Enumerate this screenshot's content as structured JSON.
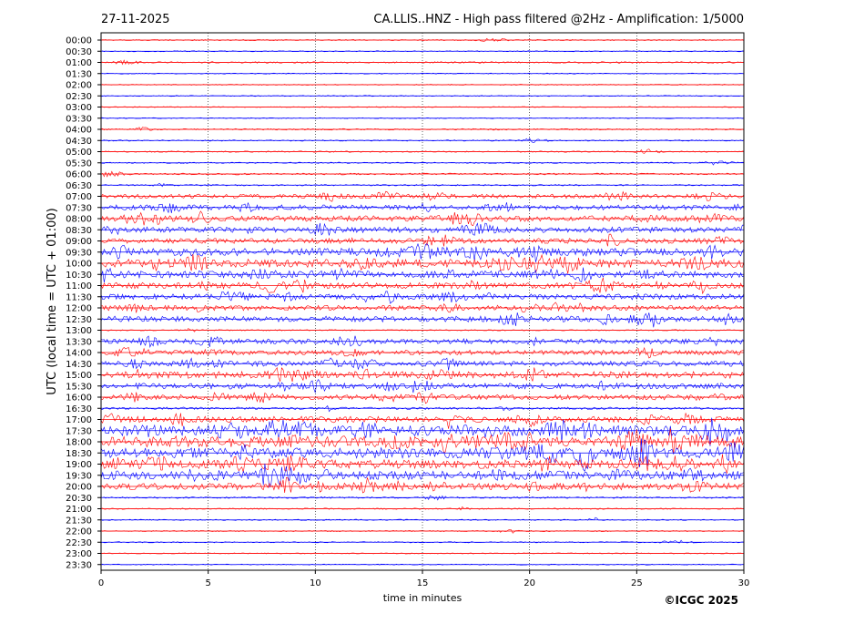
{
  "header": {
    "date": "27-11-2025",
    "title": "CA.LLIS..HNZ - High pass filtered @2Hz - Amplification: 1/5000"
  },
  "footer": {
    "copyright": "©ICGC 2025"
  },
  "chart_data": {
    "type": "line",
    "xlabel": "time in minutes",
    "ylabel": "UTC (local time = UTC + 01:00)",
    "xlim": [
      0,
      30
    ],
    "x_ticks": [
      0,
      5,
      10,
      15,
      20,
      25,
      30
    ],
    "vertical_grid_at": [
      5,
      10,
      15,
      20,
      25
    ],
    "grid": "vertical dotted lines at 5-minute intervals",
    "trace_colors": [
      "#ff0000",
      "#0000ff"
    ],
    "rows": [
      "00:00",
      "00:30",
      "01:00",
      "01:30",
      "02:00",
      "02:30",
      "03:00",
      "03:30",
      "04:00",
      "04:30",
      "05:00",
      "05:30",
      "06:00",
      "06:30",
      "07:00",
      "07:30",
      "08:00",
      "08:30",
      "09:00",
      "09:30",
      "10:00",
      "10:30",
      "11:00",
      "11:30",
      "12:00",
      "12:30",
      "13:00",
      "13:30",
      "14:00",
      "14:30",
      "15:00",
      "15:30",
      "16:00",
      "16:30",
      "17:00",
      "17:30",
      "18:00",
      "18:30",
      "19:00",
      "19:30",
      "20:00",
      "20:30",
      "21:00",
      "21:30",
      "22:00",
      "22:30",
      "23:00",
      "23:30"
    ],
    "activity_level": [
      0.05,
      0.03,
      0.08,
      0.03,
      0.03,
      0.03,
      0.03,
      0.03,
      0.08,
      0.06,
      0.06,
      0.05,
      0.1,
      0.08,
      0.35,
      0.45,
      0.5,
      0.5,
      0.45,
      0.7,
      0.75,
      0.65,
      0.55,
      0.5,
      0.45,
      0.5,
      0.05,
      0.45,
      0.4,
      0.45,
      0.6,
      0.5,
      0.45,
      0.15,
      0.55,
      0.95,
      1.0,
      0.95,
      0.8,
      0.8,
      0.6,
      0.1,
      0.06,
      0.05,
      0.05,
      0.04,
      0.03,
      0.03
    ]
  }
}
